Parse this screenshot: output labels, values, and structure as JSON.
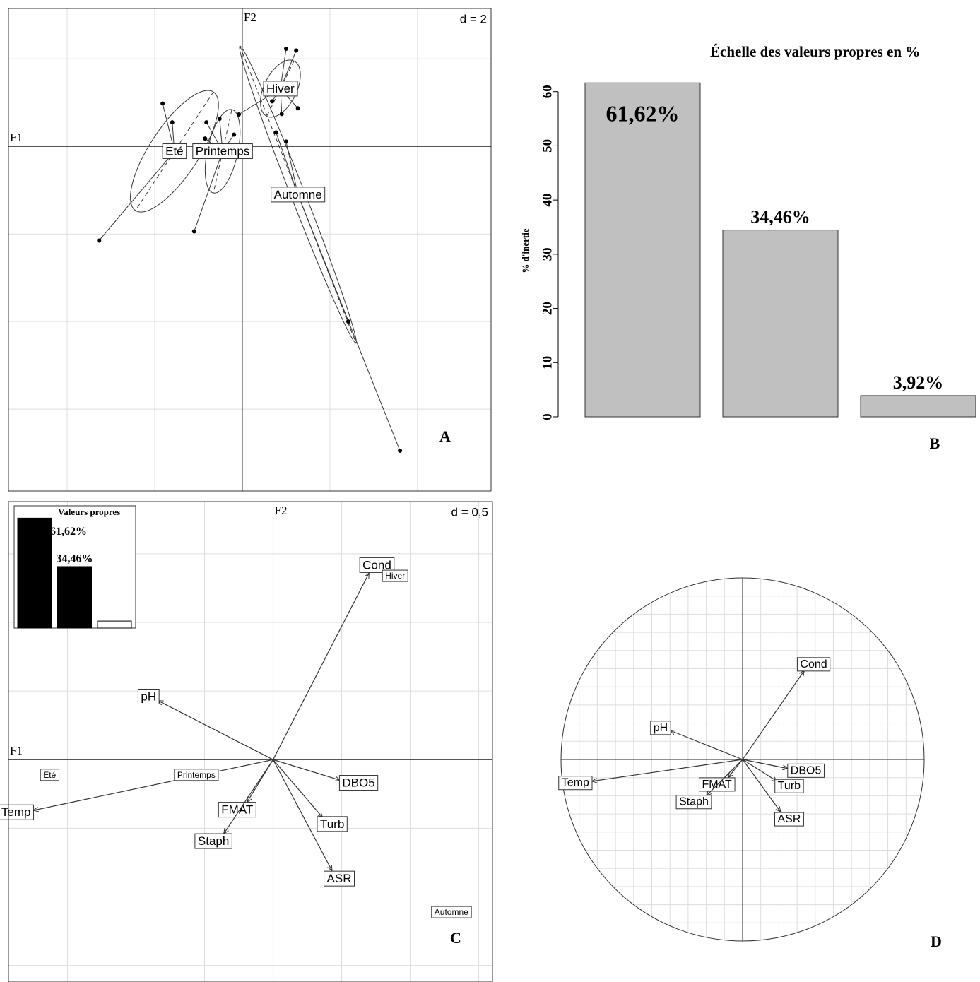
{
  "chart_data": [
    {
      "type": "scatter",
      "panel": "A",
      "x_label": "F1",
      "y_label": "F2",
      "scale_label": "d = 2",
      "xlim": [
        -5.34,
        5.68
      ],
      "ylim": [
        -7.87,
        3.15
      ],
      "xticks": [
        -4,
        -2,
        0,
        2,
        4
      ],
      "yticks": [
        -6,
        -4,
        -2,
        0,
        2
      ],
      "grid": true,
      "groups": [
        {
          "name": "Eté",
          "center_x": -1.55,
          "center_y": -0.11,
          "x": [
            -1.82,
            -1.6,
            -3.27
          ],
          "y": [
            0.98,
            0.55,
            -2.15
          ]
        },
        {
          "name": "Printemps",
          "center_x": -0.45,
          "center_y": -0.11,
          "x": [
            -0.82,
            -0.52,
            -0.19,
            -1.1,
            -0.85
          ],
          "y": [
            0.55,
            0.63,
            0.27,
            -1.94,
            0.18
          ]
        },
        {
          "name": "Hiver",
          "center_x": 0.87,
          "center_y": 1.32,
          "x": [
            1.0,
            1.23,
            1.27,
            0.9,
            -0.08,
            0.68
          ],
          "y": [
            2.23,
            2.19,
            0.87,
            0.74,
            0.73,
            1.03
          ]
        },
        {
          "name": "Automne",
          "center_x": 1.27,
          "center_y": -1.1,
          "x": [
            3.6,
            2.42,
            1.0,
            0.77
          ],
          "y": [
            -6.95,
            -4.0,
            0.11,
            0.32
          ]
        }
      ]
    },
    {
      "type": "bar",
      "panel": "B",
      "title": "Échelle des valeurs propres en %",
      "y_label": "% d'inertie",
      "categories": [
        null,
        null,
        null
      ],
      "values": [
        61.62,
        34.46,
        3.92
      ],
      "value_labels": [
        "61,62%",
        "34,46%",
        "3,92%"
      ],
      "color": "#c0c0c0",
      "ylim": [
        0,
        67
      ],
      "yticks": [
        0,
        10,
        20,
        30,
        40,
        50,
        60
      ]
    },
    {
      "type": "biplot",
      "panel": "C",
      "x_label": "F1",
      "y_label": "F2",
      "scale_label": "d = 0,5",
      "xlim": [
        -1.93,
        1.6
      ],
      "ylim": [
        -1.62,
        1.88
      ],
      "xticks": [
        -1.5,
        -1,
        -0.5,
        0,
        0.5,
        1,
        1.5
      ],
      "yticks": [
        -1.5,
        -1,
        -0.5,
        0,
        0.5,
        1,
        1.5
      ],
      "grid": true,
      "variables": {
        "names": [
          "Cond",
          "pH",
          "DBO5",
          "Temp",
          "FMAT",
          "Staph",
          "Turb",
          "ASR"
        ],
        "x": [
          0.7,
          -0.84,
          0.49,
          -1.75,
          -0.19,
          -0.36,
          0.36,
          0.43
        ],
        "y": [
          1.36,
          0.43,
          -0.15,
          -0.37,
          -0.31,
          -0.54,
          -0.42,
          -0.81
        ]
      },
      "classes": {
        "names": [
          "Eté",
          "Printemps",
          "Hiver",
          "Automne"
        ],
        "x": [
          -1.63,
          -0.56,
          0.89,
          1.3
        ],
        "y": [
          -0.11,
          -0.11,
          1.34,
          -1.11
        ]
      },
      "inset": {
        "title": "Valeurs propres",
        "values": [
          61.62,
          34.46,
          3.92
        ],
        "value_labels": [
          "61,62%",
          "34,46%",
          null
        ],
        "ylim": [
          0,
          68.5
        ]
      }
    },
    {
      "type": "circle",
      "panel": "D",
      "xlim": [
        -1,
        1
      ],
      "ylim": [
        -1,
        1
      ],
      "xticks": [
        -0.9,
        -0.8,
        -0.7,
        -0.6,
        -0.5,
        -0.4,
        -0.3,
        -0.2,
        -0.1,
        0,
        0.1,
        0.2,
        0.3,
        0.4,
        0.5,
        0.6,
        0.7,
        0.8,
        0.9
      ],
      "yticks": [
        -0.9,
        -0.8,
        -0.7,
        -0.6,
        -0.5,
        -0.4,
        -0.3,
        -0.2,
        -0.1,
        0,
        0.1,
        0.2,
        0.3,
        0.4,
        0.5,
        0.6,
        0.7,
        0.8,
        0.9
      ],
      "grid": true,
      "variables": {
        "names": [
          "Cond",
          "pH",
          "DBO5",
          "Temp",
          "FMAT",
          "Staph",
          "Turb",
          "ASR"
        ],
        "x": [
          0.34,
          -0.4,
          0.25,
          -0.83,
          -0.08,
          -0.2,
          0.19,
          0.21
        ],
        "y": [
          0.49,
          0.16,
          -0.05,
          -0.12,
          -0.1,
          -0.2,
          -0.12,
          -0.29
        ]
      }
    }
  ]
}
